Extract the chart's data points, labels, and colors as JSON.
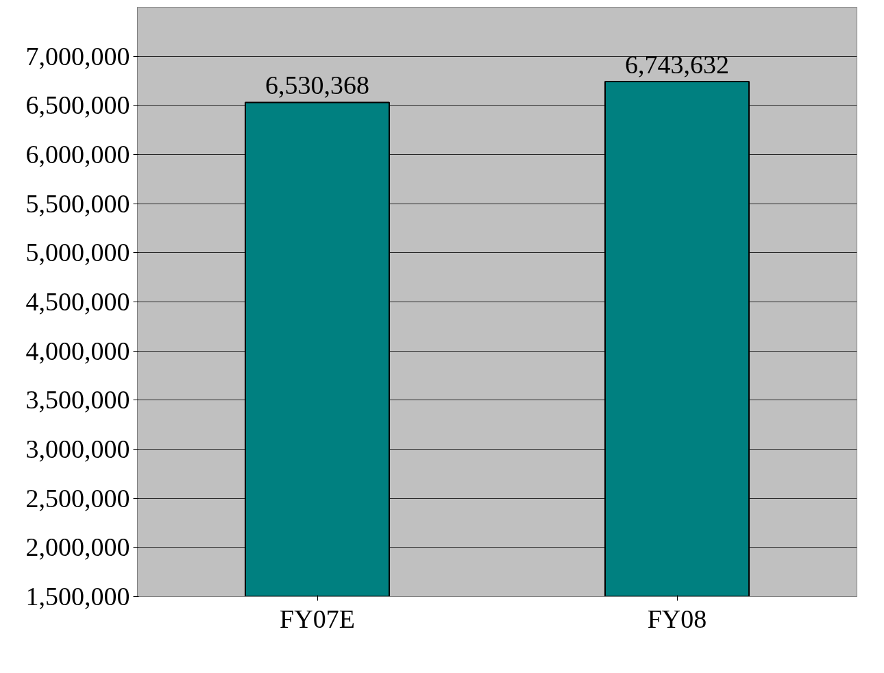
{
  "chart_data": {
    "type": "bar",
    "categories": [
      "FY07E",
      "FY08"
    ],
    "values": [
      6530368,
      6743632
    ],
    "value_labels": [
      "6,530,368",
      "6,743,632"
    ],
    "color": "#008080",
    "ylim": [
      1500000,
      7500000
    ],
    "yticks": [
      {
        "value": 1500000,
        "label": "1,500,000"
      },
      {
        "value": 2000000,
        "label": "2,000,000"
      },
      {
        "value": 2500000,
        "label": "2,500,000"
      },
      {
        "value": 3000000,
        "label": "3,000,000"
      },
      {
        "value": 3500000,
        "label": "3,500,000"
      },
      {
        "value": 4000000,
        "label": "4,000,000"
      },
      {
        "value": 4500000,
        "label": "4,500,000"
      },
      {
        "value": 5000000,
        "label": "5,000,000"
      },
      {
        "value": 5500000,
        "label": "5,500,000"
      },
      {
        "value": 6000000,
        "label": "6,000,000"
      },
      {
        "value": 6500000,
        "label": "6,500,000"
      },
      {
        "value": 7000000,
        "label": "7,000,000"
      }
    ],
    "grid": "y"
  }
}
